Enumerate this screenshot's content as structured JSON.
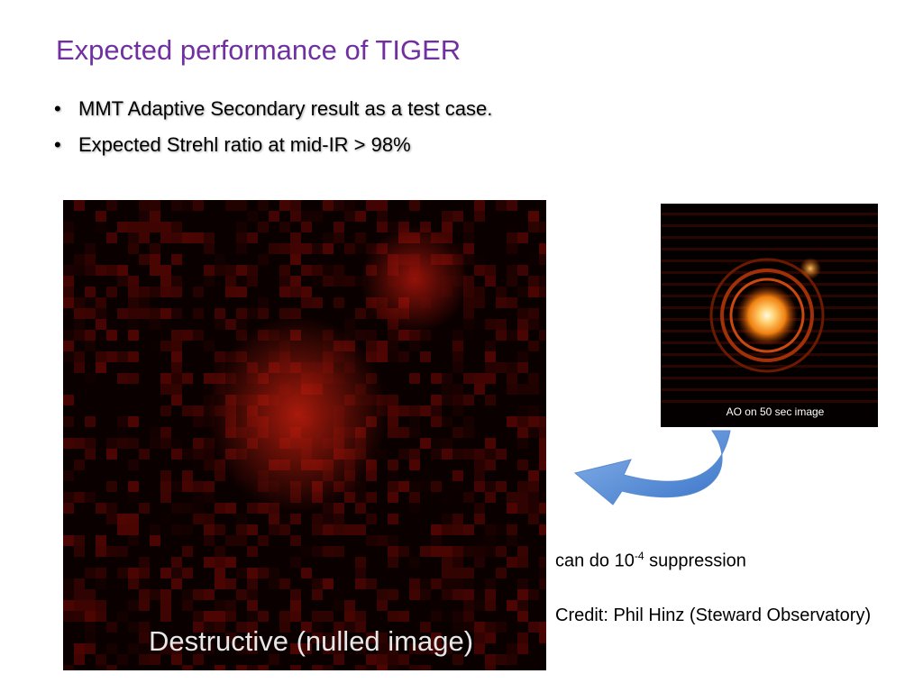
{
  "title": "Expected performance of TIGER",
  "bullets": [
    "MMT Adaptive Secondary result as a test case.",
    "Expected Strehl ratio at mid-IR > 98%"
  ],
  "images": {
    "nulled_caption": "Destructive (nulled image)",
    "ao_caption": "AO on 50 sec image"
  },
  "notes": {
    "suppression": {
      "prefix": "can do 10",
      "superscript": "-4",
      "suffix": " suppression"
    },
    "credit": "Credit: Phil Hinz (Steward Observatory)"
  }
}
